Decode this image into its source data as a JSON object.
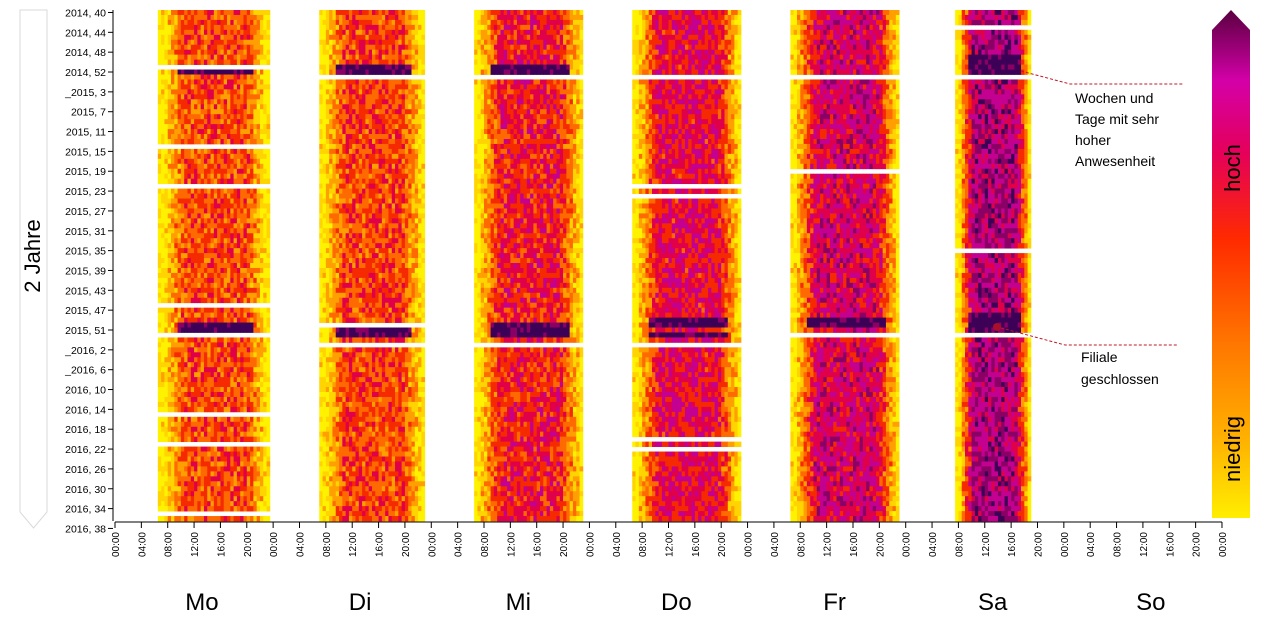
{
  "chart_data": {
    "type": "heatmap",
    "title": "",
    "y_axis_title": "2 Jahre",
    "y_tick_labels": [
      "2014, 40",
      "2014, 44",
      "2014, 48",
      "2014, 52",
      "_2015, 3",
      "2015, 7",
      "2015, 11",
      "2015, 15",
      "2015, 19",
      "2015, 23",
      "2015, 27",
      "2015, 31",
      "2015, 35",
      "2015, 39",
      "2015, 43",
      "2015, 47",
      "2015, 51",
      "_2016, 2",
      "_2016, 6",
      "2016, 10",
      "2016, 14",
      "2016, 18",
      "2016, 22",
      "2016, 26",
      "2016, 30",
      "2016, 34",
      "2016, 38"
    ],
    "x_tick_labels": [
      "00:00",
      "04:00",
      "08:00",
      "12:00",
      "16:00",
      "20:00"
    ],
    "days": [
      {
        "label": "Mo",
        "level": 0.4,
        "open": [
          6.5,
          23.5
        ],
        "closed_weeks": [
          "2014, 51",
          "2015, 14",
          "2015, 22",
          "2015, 46",
          "2015, 52",
          "2016, 15",
          "2016, 21",
          "2016, 35"
        ],
        "peak_weeks": [
          "2014, 51",
          "2014, 52",
          "2015, 50",
          "2015, 51"
        ]
      },
      {
        "label": "Di",
        "level": 0.42,
        "open": [
          7.0,
          23.0
        ],
        "closed_weeks": [
          "2014, 53",
          "2015, 50",
          "2016, 1"
        ],
        "peak_weeks": [
          "2014, 51",
          "2014, 52",
          "2015, 51",
          "2015, 52"
        ]
      },
      {
        "label": "Mi",
        "level": 0.5,
        "open": [
          6.5,
          23.0
        ],
        "closed_weeks": [
          "2014, 53",
          "2016, 1"
        ],
        "peak_weeks": [
          "2014, 51",
          "2014, 52",
          "2015, 50",
          "2015, 51",
          "2015, 52"
        ]
      },
      {
        "label": "Do",
        "level": 0.55,
        "open": [
          6.5,
          23.0
        ],
        "closed_weeks": [
          "2014, 53",
          "2015, 22",
          "2015, 24",
          "2016, 1",
          "2016, 20",
          "2016, 22"
        ],
        "peak_weeks": [
          "2015, 49",
          "2015, 50",
          "2015, 52"
        ]
      },
      {
        "label": "Fr",
        "level": 0.62,
        "open": [
          6.5,
          23.0
        ],
        "closed_weeks": [
          "2014, 53",
          "2015, 19",
          "2015, 52"
        ],
        "peak_weeks": [
          "2015, 49",
          "2015, 50"
        ]
      },
      {
        "label": "Sa",
        "level": 0.72,
        "open": [
          7.5,
          19.0
        ],
        "closed_weeks": [
          "2014, 43",
          "2014, 53",
          "2015, 35",
          "2015, 52",
          "2016, 38"
        ],
        "peak_weeks": [
          "2014, 49",
          "2014, 50",
          "2014, 51",
          "2014, 52",
          "2015, 48",
          "2015, 49",
          "2015, 50",
          "2015, 51"
        ]
      },
      {
        "label": "So",
        "level": 0.0,
        "open": null,
        "closed_weeks": [],
        "peak_weeks": []
      }
    ],
    "legend": {
      "high_label": "hoch",
      "low_label": "niedrig",
      "colors": [
        "#fff200",
        "#ffd400",
        "#ff9f00",
        "#ff6a00",
        "#f52a00",
        "#e0004a",
        "#c40090",
        "#8a0065",
        "#3d0057"
      ]
    },
    "annotations": [
      {
        "text_lines": [
          "Wochen und",
          "Tage mit sehr",
          "hoher",
          "Anwesenheit"
        ],
        "target": "2014, 52 / Sa"
      },
      {
        "text_lines": [
          "Filiale",
          "geschlossen"
        ],
        "target": "2016, 1 / Sa"
      }
    ]
  }
}
